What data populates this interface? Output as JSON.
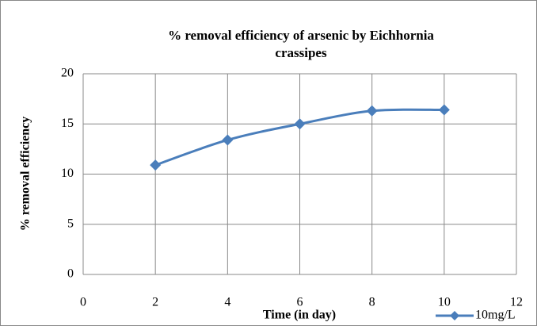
{
  "chart_data": {
    "type": "line",
    "title": "% removal efficiency of arsenic by Eichhornia crassipes",
    "x_label": "Time (in day)",
    "y_label": "% removal efficiency",
    "x": [
      2,
      4,
      6,
      8,
      10
    ],
    "series": [
      {
        "name": "10mg/L",
        "color": "#4a7ebb",
        "values": [
          10.9,
          13.4,
          15.0,
          16.3,
          16.4
        ]
      }
    ],
    "xlim": [
      0,
      12
    ],
    "xticks": [
      0,
      2,
      4,
      6,
      8,
      10,
      12
    ],
    "ylim": [
      0,
      20
    ],
    "yticks": [
      0,
      5,
      10,
      15,
      20
    ],
    "grid": true,
    "legend": "bottom-right"
  }
}
